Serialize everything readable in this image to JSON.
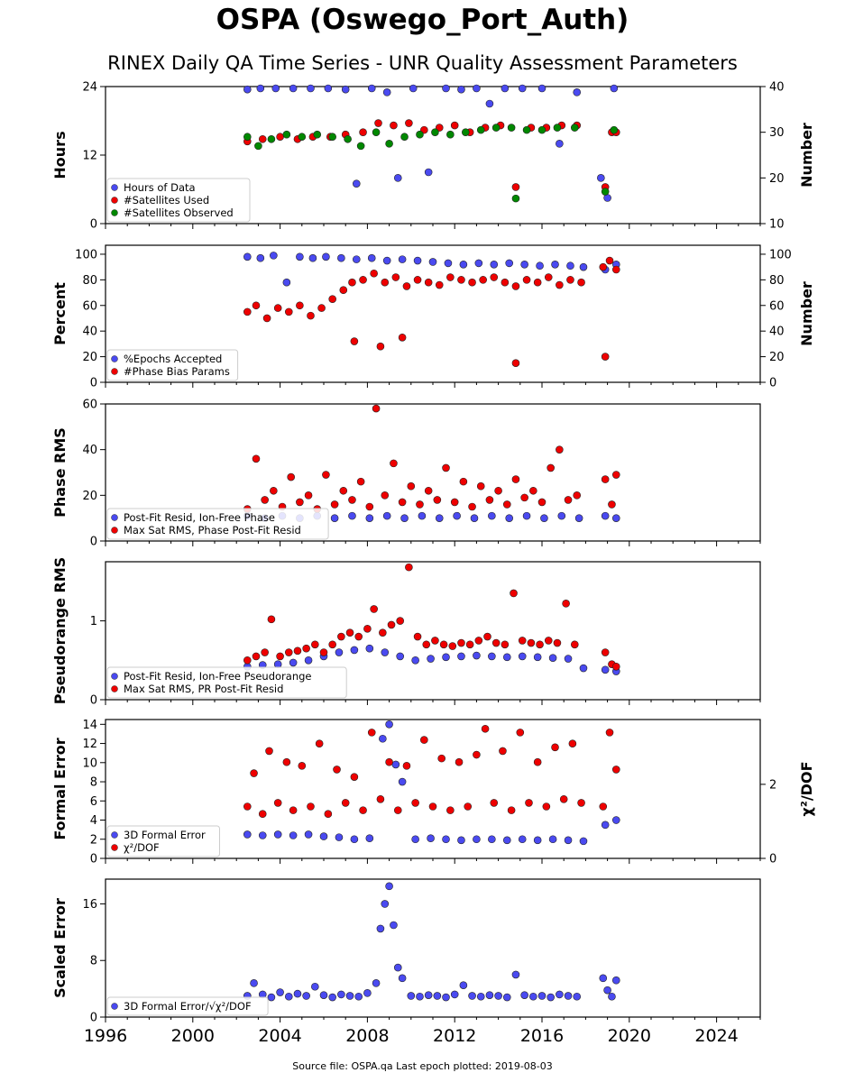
{
  "title": "OSPA (Oswego_Port_Auth)",
  "subtitle": "RINEX Daily QA Time Series - UNR Quality Assessment Parameters",
  "footer": "Source file: OSPA.qa Last epoch plotted: 2019-08-03",
  "colors": {
    "blue": "#4a4af0",
    "red": "#ee0000",
    "green": "#008800"
  },
  "chart_data": [
    {
      "type": "scatter",
      "ylabel": "Hours",
      "y2label": "Number",
      "xlim": [
        1996,
        2026
      ],
      "ylim": [
        0,
        24
      ],
      "y2lim": [
        10,
        40
      ],
      "yticks": [
        "0",
        "12",
        "24"
      ],
      "y2ticks": [
        "10",
        "20",
        "30",
        "40"
      ],
      "legend_position": "lower-left",
      "series": [
        {
          "name": "Hours of Data",
          "color": "blue",
          "axis": "left",
          "x": [
            2002.5,
            2003.1,
            2003.8,
            2004.6,
            2005.4,
            2006.2,
            2007.0,
            2007.5,
            2008.2,
            2008.9,
            2009.4,
            2010.1,
            2010.8,
            2011.6,
            2012.3,
            2013.0,
            2013.6,
            2014.3,
            2015.1,
            2016.0,
            2016.8,
            2017.6,
            2018.7,
            2019.0,
            2019.3
          ],
          "y": [
            23.5,
            24,
            24,
            23.8,
            24,
            24,
            23.5,
            7,
            24,
            23,
            8,
            24,
            9,
            24,
            23.5,
            24,
            21,
            24,
            24,
            24,
            14,
            23,
            8,
            4.5,
            24
          ]
        },
        {
          "name": "#Satellites Used",
          "color": "red",
          "axis": "right",
          "x": [
            2002.5,
            2003.2,
            2004.0,
            2004.8,
            2005.5,
            2006.3,
            2007.0,
            2007.8,
            2008.5,
            2009.2,
            2009.9,
            2010.6,
            2011.3,
            2012.0,
            2012.7,
            2013.4,
            2014.1,
            2014.8,
            2015.5,
            2016.2,
            2016.9,
            2017.6,
            2018.9,
            2019.2,
            2019.4
          ],
          "y": [
            28,
            28.5,
            29,
            28.5,
            29,
            29,
            29.5,
            30,
            32,
            31.5,
            32,
            30.5,
            31,
            31.5,
            30,
            31,
            31.5,
            18,
            31,
            31,
            31.5,
            31.5,
            18,
            30,
            30
          ]
        },
        {
          "name": "#Satellites Observed",
          "color": "green",
          "axis": "right",
          "x": [
            2002.5,
            2003.0,
            2003.6,
            2004.3,
            2005.0,
            2005.7,
            2006.4,
            2007.1,
            2007.7,
            2008.4,
            2009.0,
            2009.7,
            2010.4,
            2011.1,
            2011.8,
            2012.5,
            2013.2,
            2013.9,
            2014.6,
            2014.8,
            2015.3,
            2016.0,
            2016.7,
            2017.5,
            2018.9,
            2019.3
          ],
          "y": [
            29,
            27,
            28.5,
            29.5,
            29,
            29.5,
            29,
            28.5,
            27,
            30,
            27.5,
            29,
            29.5,
            30,
            29.5,
            30,
            30.5,
            31,
            31,
            15.5,
            30.5,
            30.5,
            31,
            31,
            17,
            30.5
          ]
        }
      ]
    },
    {
      "type": "scatter",
      "ylabel": "Percent",
      "y2label": "Number",
      "xlim": [
        1996,
        2026
      ],
      "ylim": [
        0,
        107
      ],
      "y2lim": [
        0,
        107
      ],
      "yticks": [
        "0",
        "20",
        "40",
        "60",
        "80",
        "100"
      ],
      "y2ticks": [
        "0",
        "20",
        "40",
        "60",
        "80",
        "100"
      ],
      "legend_position": "lower-left",
      "series": [
        {
          "name": "%Epochs Accepted",
          "color": "blue",
          "axis": "left",
          "x": [
            2002.5,
            2003.1,
            2003.7,
            2004.3,
            2004.9,
            2005.5,
            2006.1,
            2006.8,
            2007.5,
            2008.2,
            2008.9,
            2009.6,
            2010.3,
            2011.0,
            2011.7,
            2012.4,
            2013.1,
            2013.8,
            2014.5,
            2015.2,
            2015.9,
            2016.6,
            2017.3,
            2017.9,
            2018.9,
            2019.4
          ],
          "y": [
            98,
            97,
            99,
            78,
            98,
            97,
            98,
            97,
            96,
            97,
            95,
            96,
            95,
            94,
            93,
            92,
            93,
            92,
            93,
            92,
            91,
            92,
            91,
            90,
            88,
            92
          ]
        },
        {
          "name": "#Phase Bias Params",
          "color": "red",
          "axis": "right",
          "x": [
            2002.5,
            2002.9,
            2003.4,
            2003.9,
            2004.4,
            2004.9,
            2005.4,
            2005.9,
            2006.4,
            2006.9,
            2007.3,
            2007.8,
            2008.3,
            2008.8,
            2009.3,
            2009.8,
            2010.3,
            2010.8,
            2011.3,
            2011.8,
            2012.3,
            2012.8,
            2013.3,
            2013.8,
            2014.3,
            2014.8,
            2015.3,
            2015.8,
            2016.3,
            2016.8,
            2017.3,
            2017.8,
            2018.8,
            2019.1,
            2019.4,
            2007.4,
            2008.6,
            2009.6,
            2014.8,
            2018.9
          ],
          "y": [
            55,
            60,
            50,
            58,
            55,
            60,
            52,
            58,
            65,
            72,
            78,
            80,
            85,
            78,
            82,
            75,
            80,
            78,
            76,
            82,
            80,
            78,
            80,
            82,
            78,
            75,
            80,
            78,
            82,
            76,
            80,
            78,
            90,
            95,
            88,
            32,
            28,
            35,
            15,
            20
          ]
        }
      ]
    },
    {
      "type": "scatter",
      "ylabel": "Phase RMS",
      "xlim": [
        1996,
        2026
      ],
      "ylim": [
        0,
        60
      ],
      "yticks": [
        "0",
        "20",
        "40",
        "60"
      ],
      "legend_position": "lower-left",
      "series": [
        {
          "name": "Post-Fit Resid, Ion-Free Phase",
          "color": "blue",
          "axis": "left",
          "x": [
            2002.5,
            2003.3,
            2004.1,
            2004.9,
            2005.7,
            2006.5,
            2007.3,
            2008.1,
            2008.9,
            2009.7,
            2010.5,
            2011.3,
            2012.1,
            2012.9,
            2013.7,
            2014.5,
            2015.3,
            2016.1,
            2016.9,
            2017.7,
            2018.9,
            2019.4
          ],
          "y": [
            11,
            10,
            11,
            10,
            11,
            10,
            11,
            10,
            11,
            10,
            11,
            10,
            11,
            10,
            11,
            10,
            11,
            10,
            11,
            10,
            11,
            10
          ]
        },
        {
          "name": "Max Sat RMS, Phase Post-Fit Resid",
          "color": "red",
          "axis": "left",
          "x": [
            2002.5,
            2002.9,
            2003.3,
            2003.7,
            2004.1,
            2004.5,
            2004.9,
            2005.3,
            2005.7,
            2006.1,
            2006.5,
            2006.9,
            2007.3,
            2007.7,
            2008.1,
            2008.4,
            2008.8,
            2009.2,
            2009.6,
            2010.0,
            2010.4,
            2010.8,
            2011.2,
            2011.6,
            2012.0,
            2012.4,
            2012.8,
            2013.2,
            2013.6,
            2014.0,
            2014.4,
            2014.8,
            2015.2,
            2015.6,
            2016.0,
            2016.4,
            2016.8,
            2017.2,
            2017.6,
            2018.9,
            2019.2,
            2019.4
          ],
          "y": [
            14,
            36,
            18,
            22,
            15,
            28,
            17,
            20,
            14,
            29,
            16,
            22,
            18,
            26,
            15,
            58,
            20,
            34,
            17,
            24,
            16,
            22,
            18,
            32,
            17,
            26,
            15,
            24,
            18,
            22,
            16,
            27,
            19,
            22,
            17,
            32,
            40,
            18,
            20,
            27,
            16,
            29
          ]
        }
      ]
    },
    {
      "type": "scatter",
      "ylabel": "Pseudorange RMS",
      "xlim": [
        1996,
        2026
      ],
      "ylim": [
        0,
        1.75
      ],
      "yticks": [
        "0",
        "1"
      ],
      "legend_position": "lower-left",
      "series": [
        {
          "name": "Post-Fit Resid, Ion-Free Pseudorange",
          "color": "blue",
          "axis": "left",
          "x": [
            2002.5,
            2003.2,
            2003.9,
            2004.6,
            2005.3,
            2006.0,
            2006.7,
            2007.4,
            2008.1,
            2008.8,
            2009.5,
            2010.2,
            2010.9,
            2011.6,
            2012.3,
            2013.0,
            2013.7,
            2014.4,
            2015.1,
            2015.8,
            2016.5,
            2017.2,
            2017.9,
            2018.9,
            2019.4
          ],
          "y": [
            0.42,
            0.44,
            0.45,
            0.47,
            0.5,
            0.55,
            0.6,
            0.63,
            0.65,
            0.6,
            0.55,
            0.5,
            0.52,
            0.54,
            0.55,
            0.56,
            0.55,
            0.54,
            0.55,
            0.54,
            0.53,
            0.52,
            0.4,
            0.38,
            0.36
          ]
        },
        {
          "name": "Max Sat RMS, PR Post-Fit Resid",
          "color": "red",
          "axis": "left",
          "x": [
            2002.5,
            2002.9,
            2003.3,
            2003.6,
            2004.0,
            2004.4,
            2004.8,
            2005.2,
            2005.6,
            2006.0,
            2006.4,
            2006.8,
            2007.2,
            2007.6,
            2008.0,
            2008.3,
            2008.7,
            2009.1,
            2009.5,
            2009.9,
            2010.3,
            2010.7,
            2011.1,
            2011.5,
            2011.9,
            2012.3,
            2012.7,
            2013.1,
            2013.5,
            2013.9,
            2014.3,
            2014.7,
            2015.1,
            2015.5,
            2015.9,
            2016.3,
            2016.7,
            2017.1,
            2017.5,
            2018.9,
            2019.2,
            2019.4
          ],
          "y": [
            0.5,
            0.55,
            0.6,
            1.02,
            0.55,
            0.6,
            0.62,
            0.65,
            0.7,
            0.6,
            0.7,
            0.8,
            0.85,
            0.8,
            0.9,
            1.15,
            0.85,
            0.95,
            1.0,
            1.68,
            0.8,
            0.7,
            0.75,
            0.7,
            0.68,
            0.72,
            0.7,
            0.75,
            0.8,
            0.72,
            0.7,
            1.35,
            0.75,
            0.72,
            0.7,
            0.75,
            0.72,
            1.22,
            0.7,
            0.6,
            0.45,
            0.42
          ]
        }
      ]
    },
    {
      "type": "scatter",
      "ylabel": "Formal Error",
      "y2label": "χ²/DOF",
      "xlim": [
        1996,
        2026
      ],
      "ylim": [
        0,
        14.5
      ],
      "y2lim": [
        0,
        3.75
      ],
      "yticks": [
        "0",
        "2",
        "4",
        "6",
        "8",
        "10",
        "12",
        "14"
      ],
      "y2ticks": [
        "0",
        "2"
      ],
      "legend_position": "lower-left",
      "series": [
        {
          "name": "3D Formal Error",
          "color": "blue",
          "axis": "left",
          "x": [
            2002.5,
            2003.2,
            2003.9,
            2004.6,
            2005.3,
            2006.0,
            2006.7,
            2007.4,
            2008.1,
            2008.7,
            2009.0,
            2009.3,
            2009.6,
            2010.2,
            2010.9,
            2011.6,
            2012.3,
            2013.0,
            2013.7,
            2014.4,
            2015.1,
            2015.8,
            2016.5,
            2017.2,
            2017.9,
            2018.9,
            2019.4
          ],
          "y": [
            2.5,
            2.4,
            2.5,
            2.4,
            2.5,
            2.3,
            2.2,
            2.0,
            2.1,
            12.5,
            14.0,
            9.8,
            8.0,
            2.0,
            2.1,
            2.0,
            1.9,
            2.0,
            2.0,
            1.9,
            2.0,
            1.9,
            2.0,
            1.9,
            1.8,
            3.5,
            4.0
          ]
        },
        {
          "name": "χ²/DOF",
          "color": "red",
          "axis": "right",
          "x": [
            2002.5,
            2002.8,
            2003.2,
            2003.5,
            2003.9,
            2004.3,
            2004.6,
            2005.0,
            2005.4,
            2005.8,
            2006.2,
            2006.6,
            2007.0,
            2007.4,
            2007.8,
            2008.2,
            2008.6,
            2009.0,
            2009.4,
            2009.8,
            2010.2,
            2010.6,
            2011.0,
            2011.4,
            2011.8,
            2012.2,
            2012.6,
            2013.0,
            2013.4,
            2013.8,
            2014.2,
            2014.6,
            2015.0,
            2015.4,
            2015.8,
            2016.2,
            2016.6,
            2017.0,
            2017.4,
            2017.8,
            2018.8,
            2019.1,
            2019.4
          ],
          "y": [
            1.4,
            2.3,
            1.2,
            2.9,
            1.5,
            2.6,
            1.3,
            2.5,
            1.4,
            3.1,
            1.2,
            2.4,
            1.5,
            2.2,
            1.3,
            3.4,
            1.6,
            2.6,
            1.3,
            2.5,
            1.5,
            3.2,
            1.4,
            2.7,
            1.3,
            2.6,
            1.4,
            2.8,
            3.5,
            1.5,
            2.9,
            1.3,
            3.4,
            1.5,
            2.6,
            1.4,
            3.0,
            1.6,
            3.1,
            1.5,
            1.4,
            3.4,
            2.4
          ]
        }
      ]
    },
    {
      "type": "scatter",
      "ylabel": "Scaled Error",
      "xlim": [
        1996,
        2026
      ],
      "ylim": [
        0,
        19.5
      ],
      "yticks": [
        "0",
        "8",
        "16"
      ],
      "xticks": [
        "1996",
        "2000",
        "2004",
        "2008",
        "2012",
        "2016",
        "2020",
        "2024"
      ],
      "legend_position": "lower-left",
      "series": [
        {
          "name": "3D Formal Error/√χ²/DOF",
          "color": "blue",
          "axis": "left",
          "x": [
            2002.5,
            2002.8,
            2003.2,
            2003.6,
            2004.0,
            2004.4,
            2004.8,
            2005.2,
            2005.6,
            2006.0,
            2006.4,
            2006.8,
            2007.2,
            2007.6,
            2008.0,
            2008.4,
            2008.6,
            2008.8,
            2009.0,
            2009.2,
            2009.4,
            2009.6,
            2010.0,
            2010.4,
            2010.8,
            2011.2,
            2011.6,
            2012.0,
            2012.4,
            2012.8,
            2013.2,
            2013.6,
            2014.0,
            2014.4,
            2014.8,
            2015.2,
            2015.6,
            2016.0,
            2016.4,
            2016.8,
            2017.2,
            2017.6,
            2018.8,
            2019.0,
            2019.2,
            2019.4
          ],
          "y": [
            3.0,
            4.8,
            3.2,
            2.8,
            3.5,
            2.9,
            3.3,
            3.0,
            4.3,
            3.1,
            2.8,
            3.2,
            3.0,
            2.9,
            3.4,
            4.8,
            12.5,
            16.0,
            18.5,
            13.0,
            7.0,
            5.5,
            3.0,
            2.9,
            3.1,
            3.0,
            2.8,
            3.2,
            4.5,
            3.0,
            2.9,
            3.1,
            3.0,
            2.8,
            6.0,
            3.1,
            2.9,
            3.0,
            2.8,
            3.2,
            3.0,
            2.9,
            5.5,
            3.8,
            2.9,
            5.2
          ]
        }
      ]
    }
  ]
}
